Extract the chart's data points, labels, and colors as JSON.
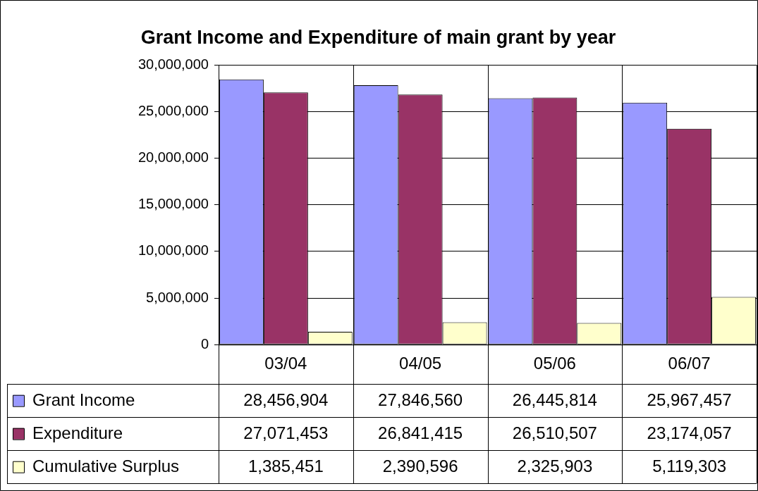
{
  "chart_data": {
    "type": "bar",
    "title": "Grant Income and Expenditure of main grant by year",
    "categories": [
      "03/04",
      "04/05",
      "05/06",
      "06/07"
    ],
    "series": [
      {
        "name": "Grant Income",
        "color": "#9999ff",
        "values": [
          28456904,
          27846560,
          26445814,
          25967457
        ],
        "value_labels": [
          "28,456,904",
          "27,846,560",
          "26,445,814",
          "25,967,457"
        ]
      },
      {
        "name": "Expenditure",
        "color": "#993366",
        "values": [
          27071453,
          26841415,
          26510507,
          23174057
        ],
        "value_labels": [
          "27,071,453",
          "26,841,415",
          "26,510,507",
          "23,174,057"
        ]
      },
      {
        "name": "Cumulative Surplus",
        "color": "#ffffcc",
        "values": [
          1385451,
          2390596,
          2325903,
          5119303
        ],
        "value_labels": [
          "1,385,451",
          "2,390,596",
          "2,325,903",
          "5,119,303"
        ]
      }
    ],
    "ylim": [
      0,
      30000000
    ],
    "yticks": [
      0,
      {
        "value": 5000000,
        "label": "5,000,000"
      },
      {
        "value": 10000000,
        "label": "10,000,000"
      },
      {
        "value": 15000000,
        "label": "15,000,000"
      },
      {
        "value": 20000000,
        "label": "20,000,000"
      },
      {
        "value": 25000000,
        "label": "25,000,000"
      },
      {
        "value": 30000000,
        "label": "30,000,000"
      }
    ],
    "grid": "y",
    "legend": "bottom"
  }
}
